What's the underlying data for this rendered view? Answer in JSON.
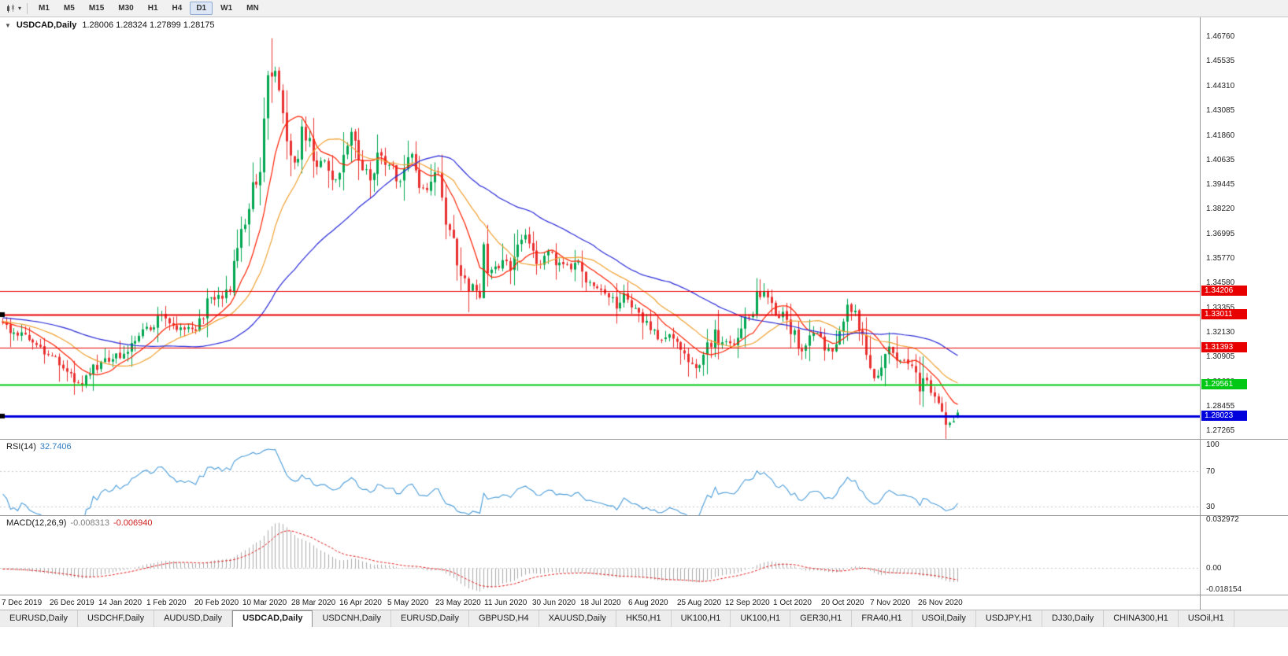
{
  "toolbar": {
    "timeframes": [
      "M1",
      "M5",
      "M15",
      "M30",
      "H1",
      "H4",
      "D1",
      "W1",
      "MN"
    ],
    "active": "D1"
  },
  "chart": {
    "collapse_icon": "▼",
    "symbol": "USDCAD,Daily",
    "ohlc_text": "1.28006 1.28324 1.27899 1.28175"
  },
  "price_scale": {
    "labels": [
      "1.46760",
      "1.45535",
      "1.44310",
      "1.43085",
      "1.41860",
      "1.40635",
      "1.39445",
      "1.38220",
      "1.36995",
      "1.35770",
      "1.34580",
      "1.33355",
      "1.32130",
      "1.30905",
      "1.29680",
      "1.28455",
      "1.27265"
    ]
  },
  "rsi": {
    "label": "RSI(14)",
    "value": "32.7406",
    "color": "#4A9CD9",
    "scale_labels": [
      {
        "text": "100",
        "value": 100
      },
      {
        "text": "70",
        "value": 70
      },
      {
        "text": "30",
        "value": 30
      }
    ],
    "dashed_levels": [
      70,
      30
    ]
  },
  "macd": {
    "label": "MACD(12,26,9)",
    "value_main": "-0.008313",
    "value_signal": "-0.006940",
    "scale_labels": [
      {
        "text": "0.032972",
        "value": 0.032972
      },
      {
        "text": "0.00",
        "value": 0
      },
      {
        "text": "-0.018154",
        "value": -0.018154
      }
    ],
    "colors": {
      "histogram": "#ABABAB",
      "signal": "#E01818",
      "zero_line": "#C8C8C8"
    }
  },
  "date_axis": {
    "labels": [
      "7 Dec 2019",
      "26 Dec 2019",
      "14 Jan 2020",
      "1 Feb 2020",
      "20 Feb 2020",
      "10 Mar 2020",
      "28 Mar 2020",
      "16 Apr 2020",
      "5 May 2020",
      "23 May 2020",
      "11 Jun 2020",
      "30 Jun 2020",
      "18 Jul 2020",
      "6 Aug 2020",
      "25 Aug 2020",
      "12 Sep 2020",
      "1 Oct 2020",
      "20 Oct 2020",
      "7 Nov 2020",
      "26 Nov 2020"
    ]
  },
  "tabs": {
    "active_index": 3,
    "items": [
      "EURUSD,Daily",
      "USDCHF,Daily",
      "AUDUSD,Daily",
      "USDCAD,Daily",
      "USDCNH,Daily",
      "EURUSD,Daily",
      "GBPUSD,H4",
      "XAUUSD,Daily",
      "HK50,H1",
      "UK100,H1",
      "UK100,H1",
      "GER30,H1",
      "FRA40,H1",
      "USOil,Daily",
      "USDJPY,H1",
      "DJ30,Daily",
      "CHINA300,H1",
      "USOil,H1"
    ]
  },
  "chart_data": {
    "type": "candlestick",
    "symbol": "USDCAD",
    "timeframe": "Daily",
    "visible_price_range": {
      "high": 1.4676,
      "low": 1.2727
    },
    "last_ohlc": {
      "open": 1.28006,
      "high": 1.28324,
      "low": 1.27899,
      "close": 1.28175
    },
    "candle_colors": {
      "up": "#00A650",
      "down": "#E93030"
    },
    "pre_anchors": [
      [
        -50,
        1.331
      ],
      [
        -40,
        1.329
      ],
      [
        -30,
        1.3305
      ],
      [
        -20,
        1.328
      ],
      [
        -10,
        1.327
      ],
      [
        -2,
        1.3258
      ]
    ],
    "close_anchors": [
      [
        0,
        1.325
      ],
      [
        6,
        1.319
      ],
      [
        13,
        1.31
      ],
      [
        18,
        1.299
      ],
      [
        21,
        1.2955
      ],
      [
        25,
        1.305
      ],
      [
        31,
        1.3105
      ],
      [
        38,
        1.323
      ],
      [
        42,
        1.329
      ],
      [
        46,
        1.324
      ],
      [
        51,
        1.3235
      ],
      [
        55,
        1.34
      ],
      [
        58,
        1.338
      ],
      [
        60,
        1.342
      ],
      [
        62,
        1.366
      ],
      [
        64,
        1.373
      ],
      [
        66,
        1.393
      ],
      [
        68,
        1.402
      ],
      [
        69,
        1.425
      ],
      [
        70,
        1.45
      ],
      [
        71,
        1.464
      ],
      [
        72,
        1.449
      ],
      [
        74,
        1.43
      ],
      [
        76,
        1.405
      ],
      [
        78,
        1.408
      ],
      [
        79,
        1.42
      ],
      [
        81,
        1.415
      ],
      [
        83,
        1.402
      ],
      [
        85,
        1.409
      ],
      [
        87,
        1.395
      ],
      [
        89,
        1.404
      ],
      [
        91,
        1.412
      ],
      [
        92,
        1.421
      ],
      [
        94,
        1.408
      ],
      [
        97,
        1.395
      ],
      [
        99,
        1.409
      ],
      [
        102,
        1.405
      ],
      [
        104,
        1.396
      ],
      [
        107,
        1.41
      ],
      [
        108,
        1.411
      ],
      [
        110,
        1.397
      ],
      [
        112,
        1.393
      ],
      [
        114,
        1.399
      ],
      [
        115,
        1.398
      ],
      [
        117,
        1.377
      ],
      [
        119,
        1.37
      ],
      [
        120,
        1.357
      ],
      [
        122,
        1.35
      ],
      [
        124,
        1.342
      ],
      [
        126,
        1.34
      ],
      [
        127,
        1.362
      ],
      [
        128,
        1.354
      ],
      [
        130,
        1.353
      ],
      [
        132,
        1.3575
      ],
      [
        134,
        1.353
      ],
      [
        136,
        1.363
      ],
      [
        138,
        1.3685
      ],
      [
        139,
        1.366
      ],
      [
        140,
        1.358
      ],
      [
        142,
        1.3545
      ],
      [
        144,
        1.361
      ],
      [
        146,
        1.3555
      ],
      [
        148,
        1.357
      ],
      [
        150,
        1.3515
      ],
      [
        152,
        1.358
      ],
      [
        153,
        1.3535
      ],
      [
        155,
        1.3445
      ],
      [
        156,
        1.344
      ],
      [
        158,
        1.3405
      ],
      [
        160,
        1.338
      ],
      [
        162,
        1.3345
      ],
      [
        164,
        1.3415
      ],
      [
        166,
        1.334
      ],
      [
        168,
        1.33
      ],
      [
        170,
        1.325
      ],
      [
        172,
        1.322
      ],
      [
        174,
        1.318
      ],
      [
        176,
        1.3215
      ],
      [
        178,
        1.3165
      ],
      [
        180,
        1.312
      ],
      [
        182,
        1.3045
      ],
      [
        184,
        1.306
      ],
      [
        186,
        1.313
      ],
      [
        188,
        1.323
      ],
      [
        189,
        1.316
      ],
      [
        191,
        1.3165
      ],
      [
        193,
        1.316
      ],
      [
        195,
        1.3205
      ],
      [
        197,
        1.331
      ],
      [
        199,
        1.338
      ],
      [
        201,
        1.342
      ],
      [
        202,
        1.338
      ],
      [
        204,
        1.332
      ],
      [
        206,
        1.329
      ],
      [
        208,
        1.325
      ],
      [
        210,
        1.312
      ],
      [
        212,
        1.314
      ],
      [
        214,
        1.321
      ],
      [
        216,
        1.3185
      ],
      [
        217,
        1.313
      ],
      [
        219,
        1.314
      ],
      [
        221,
        1.3205
      ],
      [
        223,
        1.332
      ],
      [
        225,
        1.332
      ],
      [
        227,
        1.318
      ],
      [
        229,
        1.305
      ],
      [
        230,
        1.299
      ],
      [
        231,
        1.302
      ],
      [
        233,
        1.307
      ],
      [
        234,
        1.314
      ],
      [
        236,
        1.309
      ],
      [
        238,
        1.307
      ],
      [
        240,
        1.306
      ],
      [
        241,
        1.2995
      ],
      [
        242,
        1.293
      ],
      [
        244,
        1.299
      ],
      [
        246,
        1.292
      ],
      [
        248,
        1.286
      ],
      [
        249,
        1.278
      ],
      [
        250,
        1.2785
      ],
      [
        251,
        1.28
      ],
      [
        252,
        1.2818
      ]
    ],
    "ohlc_overrides": {
      "71": [
        1.45,
        1.467,
        1.435,
        1.448
      ],
      "252": [
        1.28006,
        1.28324,
        1.27899,
        1.28175
      ]
    },
    "moving_averages": [
      {
        "window": 10,
        "color": "#FF2000"
      },
      {
        "window": 21,
        "color": "#F0A030"
      },
      {
        "window": 50,
        "color": "#2828D8"
      }
    ],
    "hlines": [
      {
        "price": 1.34206,
        "label": "1.34206",
        "color": "#E80000",
        "width": 1,
        "handle": false
      },
      {
        "price": 1.33011,
        "label": "1.33011",
        "color": "#E80000",
        "width": 2,
        "handle": true
      },
      {
        "price": 1.31393,
        "label": "1.31393",
        "color": "#E80000",
        "width": 1,
        "handle": false
      },
      {
        "price": 1.29561,
        "label": "1.29561",
        "color": "#00C814",
        "width": 2,
        "handle": false
      },
      {
        "price": 1.28023,
        "label": "1.28023",
        "color": "#0000DC",
        "width": 3,
        "handle": true
      }
    ],
    "indicators": {
      "rsi": {
        "period": 14,
        "last_value": 32.7406
      },
      "macd": {
        "fast": 12,
        "slow": 26,
        "signal": 9,
        "last_main": -0.008313,
        "last_signal": -0.00694
      }
    }
  }
}
